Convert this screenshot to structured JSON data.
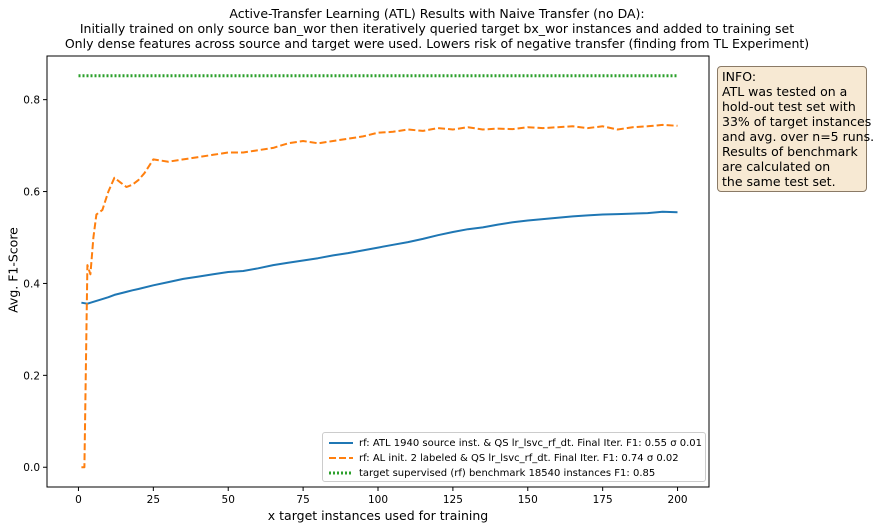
{
  "title_lines": [
    "Active-Transfer Learning (ATL) Results with Naive Transfer (no DA):",
    "Initially trained on only source ban_wor then iteratively queried target bx_wor instances and added to training set",
    "Only dense features across source and target were used. Lowers risk of negative transfer (finding from TL Experiment)"
  ],
  "info_box": {
    "lines": [
      "INFO:",
      "ATL was tested on a",
      "hold-out test set with",
      "33% of target instances",
      "and avg. over n=5 runs.",
      "Results of benchmark",
      "are calculated on",
      "the same test set."
    ],
    "background": "#f7e9d3"
  },
  "chart_data": {
    "type": "line",
    "title": "",
    "xlabel": "x target instances used for training",
    "ylabel": "Avg. F1-Score",
    "xlim": [
      -10.5,
      210.5
    ],
    "ylim": [
      -0.043,
      0.895
    ],
    "x_ticks": [
      0,
      25,
      50,
      75,
      100,
      125,
      150,
      175,
      200
    ],
    "y_ticks": [
      0.0,
      0.2,
      0.4,
      0.6,
      0.8
    ],
    "y_tick_labels": [
      "0.0",
      "0.2",
      "0.4",
      "0.6",
      "0.8"
    ],
    "grid": false,
    "legend_position": "lower-right",
    "series": [
      {
        "name": "rf: ATL 1940 source inst. & QS lr_lsvc_rf_dt. Final Iter. F1: 0.55 σ 0.01",
        "color": "#1f77b4",
        "style": "solid",
        "points": [
          [
            1,
            0.358
          ],
          [
            3,
            0.356
          ],
          [
            5,
            0.36
          ],
          [
            8,
            0.366
          ],
          [
            10,
            0.37
          ],
          [
            12,
            0.375
          ],
          [
            15,
            0.38
          ],
          [
            18,
            0.385
          ],
          [
            20,
            0.388
          ],
          [
            25,
            0.396
          ],
          [
            30,
            0.403
          ],
          [
            35,
            0.41
          ],
          [
            40,
            0.415
          ],
          [
            45,
            0.42
          ],
          [
            50,
            0.425
          ],
          [
            55,
            0.427
          ],
          [
            60,
            0.433
          ],
          [
            65,
            0.44
          ],
          [
            70,
            0.445
          ],
          [
            75,
            0.45
          ],
          [
            80,
            0.455
          ],
          [
            85,
            0.461
          ],
          [
            90,
            0.466
          ],
          [
            95,
            0.472
          ],
          [
            100,
            0.478
          ],
          [
            105,
            0.484
          ],
          [
            110,
            0.49
          ],
          [
            115,
            0.497
          ],
          [
            120,
            0.505
          ],
          [
            125,
            0.512
          ],
          [
            130,
            0.518
          ],
          [
            135,
            0.522
          ],
          [
            140,
            0.528
          ],
          [
            145,
            0.533
          ],
          [
            150,
            0.537
          ],
          [
            155,
            0.54
          ],
          [
            160,
            0.543
          ],
          [
            165,
            0.546
          ],
          [
            170,
            0.548
          ],
          [
            175,
            0.55
          ],
          [
            180,
            0.551
          ],
          [
            185,
            0.552
          ],
          [
            190,
            0.553
          ],
          [
            195,
            0.556
          ],
          [
            200,
            0.555
          ]
        ]
      },
      {
        "name": "rf: AL init. 2 labeled & QS lr_lsvc_rf_dt. Final Iter. F1: 0.74 σ 0.02",
        "color": "#ff7f0e",
        "style": "dashed",
        "points": [
          [
            1,
            0.0
          ],
          [
            2,
            0.0
          ],
          [
            3,
            0.44
          ],
          [
            4,
            0.42
          ],
          [
            5,
            0.5
          ],
          [
            6,
            0.55
          ],
          [
            8,
            0.56
          ],
          [
            10,
            0.6
          ],
          [
            12,
            0.63
          ],
          [
            14,
            0.62
          ],
          [
            16,
            0.61
          ],
          [
            18,
            0.615
          ],
          [
            20,
            0.625
          ],
          [
            22,
            0.64
          ],
          [
            25,
            0.67
          ],
          [
            30,
            0.665
          ],
          [
            35,
            0.67
          ],
          [
            40,
            0.675
          ],
          [
            45,
            0.68
          ],
          [
            50,
            0.685
          ],
          [
            55,
            0.685
          ],
          [
            60,
            0.69
          ],
          [
            65,
            0.695
          ],
          [
            70,
            0.705
          ],
          [
            75,
            0.71
          ],
          [
            80,
            0.705
          ],
          [
            85,
            0.71
          ],
          [
            90,
            0.715
          ],
          [
            95,
            0.72
          ],
          [
            100,
            0.728
          ],
          [
            105,
            0.73
          ],
          [
            110,
            0.735
          ],
          [
            115,
            0.732
          ],
          [
            120,
            0.738
          ],
          [
            125,
            0.735
          ],
          [
            130,
            0.74
          ],
          [
            135,
            0.735
          ],
          [
            140,
            0.737
          ],
          [
            145,
            0.736
          ],
          [
            150,
            0.74
          ],
          [
            155,
            0.738
          ],
          [
            160,
            0.74
          ],
          [
            165,
            0.742
          ],
          [
            170,
            0.738
          ],
          [
            175,
            0.742
          ],
          [
            180,
            0.735
          ],
          [
            185,
            0.74
          ],
          [
            190,
            0.742
          ],
          [
            195,
            0.745
          ],
          [
            200,
            0.743
          ]
        ]
      },
      {
        "name": "target supervised (rf) benchmark 18540 instances F1: 0.85",
        "color": "#2ca02c",
        "style": "dotted",
        "points": [
          [
            0,
            0.852
          ],
          [
            200,
            0.852
          ]
        ]
      }
    ]
  }
}
